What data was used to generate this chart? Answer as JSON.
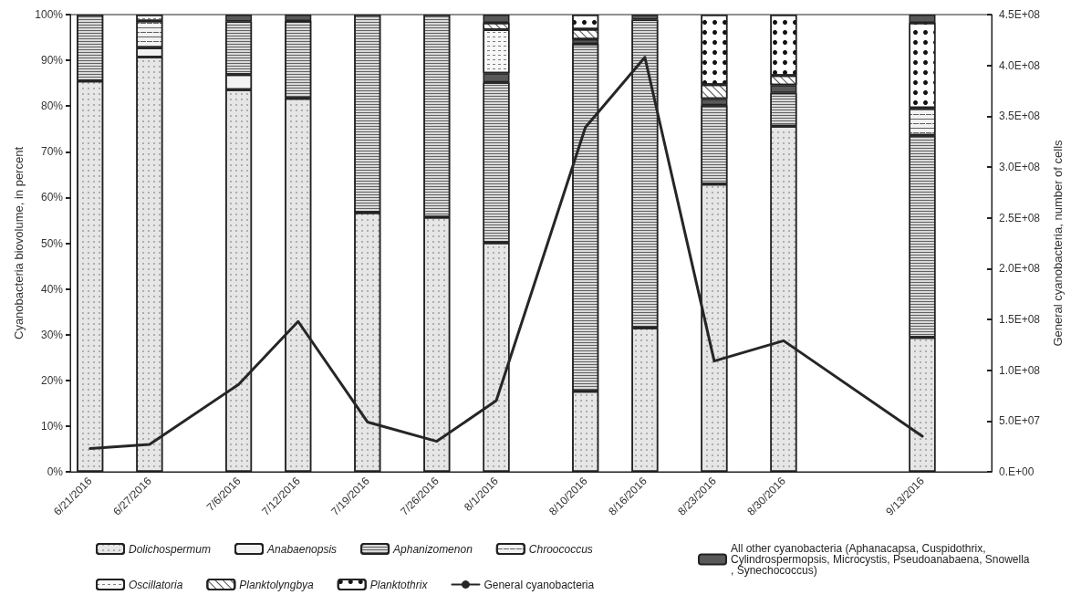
{
  "chart_data": {
    "type": "bar",
    "stacked": true,
    "x": [
      "2016-06-21",
      "2016-06-27",
      "2016-07-06",
      "2016-07-12",
      "2016-07-19",
      "2016-07-26",
      "2016-08-01",
      "2016-08-10",
      "2016-08-16",
      "2016-08-23",
      "2016-08-30",
      "2016-09-13"
    ],
    "xlim": [
      "2016-06-19",
      "2016-09-20"
    ],
    "xticks": [
      {
        "value": "2016-06-21",
        "label": "6/21/2016"
      },
      {
        "value": "2016-06-27",
        "label": "6/27/2016"
      },
      {
        "value": "2016-07-06",
        "label": "7/6/2016"
      },
      {
        "value": "2016-07-12",
        "label": "7/12/2016"
      },
      {
        "value": "2016-07-19",
        "label": "7/19/2016"
      },
      {
        "value": "2016-07-26",
        "label": "7/26/2016"
      },
      {
        "value": "2016-08-01",
        "label": "8/1/2016"
      },
      {
        "value": "2016-08-10",
        "label": "8/10/2016"
      },
      {
        "value": "2016-08-16",
        "label": "8/16/2016"
      },
      {
        "value": "2016-08-23",
        "label": "8/23/2016"
      },
      {
        "value": "2016-08-30",
        "label": "8/30/2016"
      },
      {
        "value": "2016-09-13",
        "label": "9/13/2016"
      }
    ],
    "ylabel": "Cyanobacteria biovolume, in percent",
    "y2label": "General cyanobacteria, number of cells",
    "ylim": [
      0,
      100
    ],
    "yticks": [
      {
        "value": 0,
        "label": "0%"
      },
      {
        "value": 10,
        "label": "10%"
      },
      {
        "value": 20,
        "label": "20%"
      },
      {
        "value": 30,
        "label": "30%"
      },
      {
        "value": 40,
        "label": "40%"
      },
      {
        "value": 50,
        "label": "50%"
      },
      {
        "value": 60,
        "label": "60%"
      },
      {
        "value": 70,
        "label": "70%"
      },
      {
        "value": 80,
        "label": "80%"
      },
      {
        "value": 90,
        "label": "90%"
      },
      {
        "value": 100,
        "label": "100%"
      }
    ],
    "y2lim": [
      0,
      450000000
    ],
    "y2ticks": [
      {
        "value": 0,
        "label": "0.E+00"
      },
      {
        "value": 50000000,
        "label": "5.0E+07"
      },
      {
        "value": 100000000,
        "label": "1.0E+08"
      },
      {
        "value": 150000000,
        "label": "1.5E+08"
      },
      {
        "value": 200000000,
        "label": "2.0E+08"
      },
      {
        "value": 250000000,
        "label": "2.5E+08"
      },
      {
        "value": 300000000,
        "label": "3.0E+08"
      },
      {
        "value": 350000000,
        "label": "3.5E+08"
      },
      {
        "value": 400000000,
        "label": "4.0E+08"
      },
      {
        "value": 450000000,
        "label": "4.5E+08"
      }
    ],
    "grid": false,
    "legend": "bottom",
    "series": [
      {
        "name": "Dolichospermum",
        "color": "#e6e6e6",
        "values": [
          85.5,
          90.7,
          83.6,
          81.7,
          56.7,
          55.7,
          50.1,
          17.6,
          31.5,
          62.9,
          75.6,
          29.4
        ]
      },
      {
        "name": "Anabaenopsis",
        "color": "#f2f2f2",
        "values": [
          null,
          2,
          3.3,
          null,
          null,
          null,
          null,
          null,
          null,
          null,
          null,
          null
        ]
      },
      {
        "name": "Aphanizomenon",
        "color": "#d9d9d9",
        "values": [
          14.5,
          null,
          11.6,
          16.9,
          43.3,
          44.3,
          35.1,
          76,
          67.4,
          17.3,
          7.3,
          44.2
        ]
      },
      {
        "name": "All other cyanobacteria (Aphanacapsa, Cuspidothrix, Cylindrospermopsis, Microcystis, Pseudoanabaena, Snowella, Synechococcus)",
        "color": "#595959",
        "values": [
          null,
          null,
          1.5,
          1.4,
          null,
          null,
          2,
          1,
          1.1,
          1.4,
          1.7,
          null
        ]
      },
      {
        "name": "Chroococcus",
        "color": "#f2f2f2",
        "values": [
          null,
          5.9,
          null,
          null,
          null,
          null,
          null,
          null,
          null,
          null,
          null,
          6
        ]
      },
      {
        "name": "Oscillatoria",
        "color": "#f7f7f7",
        "values": [
          null,
          1.4,
          null,
          null,
          null,
          null,
          9.5,
          null,
          null,
          null,
          null,
          null
        ]
      },
      {
        "name": "Planktolyngbya",
        "color": "#ffffff",
        "values": [
          null,
          null,
          null,
          null,
          null,
          null,
          1.5,
          2.2,
          null,
          3.1,
          2.1,
          null
        ]
      },
      {
        "name": "Planktothrix",
        "color": "#ffffff",
        "values": [
          null,
          null,
          null,
          null,
          null,
          null,
          null,
          3.2,
          null,
          15.3,
          13.3,
          18.6
        ]
      },
      {
        "color": "#595959",
        "values": [
          null,
          null,
          null,
          null,
          null,
          null,
          1.8,
          null,
          null,
          null,
          null,
          1.8
        ]
      },
      {
        "name": "General cyanobacteria",
        "type": "line",
        "axis": "y2",
        "color": "#262626",
        "marker": "none",
        "line_style": "solid",
        "values": [
          23000000,
          27000000,
          86000000,
          148000000,
          49000000,
          30000000,
          70000000,
          339000000,
          408000000,
          109000000,
          129000000,
          35000000
        ]
      }
    ]
  }
}
